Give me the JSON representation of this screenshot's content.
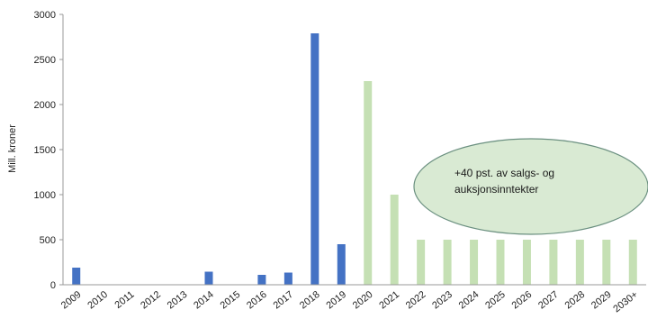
{
  "chart_data": {
    "type": "bar",
    "categories": [
      "2009",
      "2010",
      "2011",
      "2012",
      "2013",
      "2014",
      "2015",
      "2016",
      "2017",
      "2018",
      "2019",
      "2020",
      "2021",
      "2022",
      "2023",
      "2024",
      "2025",
      "2026",
      "2027",
      "2028",
      "2029",
      "2030+"
    ],
    "series": [
      {
        "values": [
          190,
          0,
          0,
          0,
          0,
          145,
          0,
          110,
          135,
          2790,
          450,
          null,
          null,
          null,
          null,
          null,
          null,
          null,
          null,
          null,
          null,
          null
        ]
      },
      {
        "values": [
          null,
          null,
          null,
          null,
          null,
          null,
          null,
          null,
          null,
          null,
          null,
          2260,
          1000,
          500,
          500,
          500,
          500,
          500,
          500,
          500,
          500,
          500
        ]
      }
    ],
    "ylabel": "Mill. kroner",
    "ylim": [
      0,
      3000
    ],
    "yticks": [
      0,
      500,
      1000,
      1500,
      2000,
      2500,
      3000
    ],
    "grid": false,
    "annotation": {
      "line1": "+40 pst. av salgs- og",
      "line2": "auksjonsinntekter"
    },
    "colors": {
      "historical": "#4472C4",
      "projected": "#C5E0B4",
      "ellipse_fill": "#D9EAD3",
      "ellipse_stroke": "#6B9080"
    }
  }
}
